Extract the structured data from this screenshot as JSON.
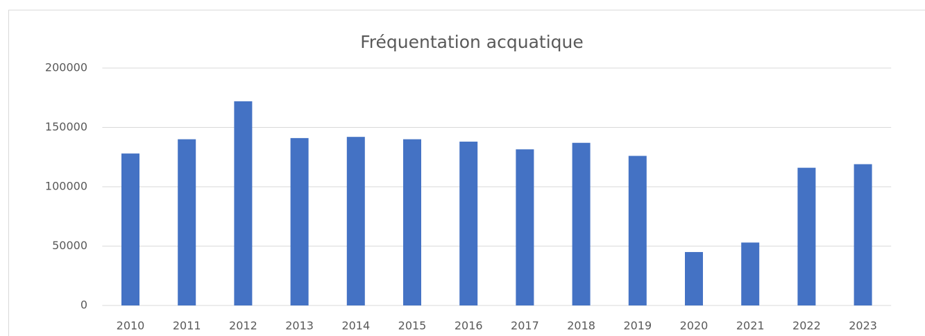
{
  "chart_data": {
    "type": "bar",
    "title": "Fréquentation acquatique",
    "categories": [
      "2010",
      "2011",
      "2012",
      "2013",
      "2014",
      "2015",
      "2016",
      "2017",
      "2018",
      "2019",
      "2020",
      "2021",
      "2022",
      "2023"
    ],
    "values": [
      128000,
      140000,
      172000,
      141000,
      142000,
      140000,
      138000,
      131500,
      137000,
      126000,
      45000,
      53000,
      116000,
      119000
    ],
    "color": "#4472c4",
    "ylim": [
      0,
      200000
    ],
    "yticks": [
      0,
      50000,
      100000,
      150000,
      200000
    ],
    "grid": true
  }
}
